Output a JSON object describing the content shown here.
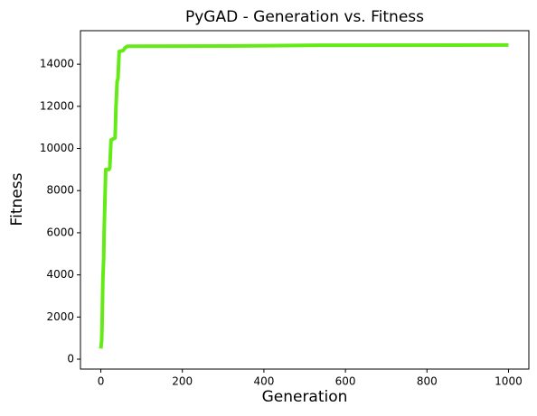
{
  "chart_data": {
    "type": "line",
    "title": "PyGAD - Generation vs. Fitness",
    "x_label": "Generation",
    "y_label": "Fitness",
    "x": [
      0,
      2,
      3,
      5,
      7,
      8,
      10,
      12,
      20,
      22,
      25,
      35,
      37,
      40,
      42,
      45,
      55,
      58,
      65,
      300,
      540,
      1000
    ],
    "series": [
      {
        "name": "Fitness",
        "color": "#64eb17",
        "values": [
          500,
          900,
          1600,
          3800,
          4800,
          6000,
          7500,
          9000,
          9000,
          9100,
          10400,
          10500,
          11900,
          13200,
          13300,
          14600,
          14650,
          14750,
          14850,
          14860,
          14900,
          14910
        ]
      }
    ],
    "xlim": [
      -50,
      1050
    ],
    "xticks": [
      0,
      200,
      400,
      600,
      800,
      1000
    ],
    "ylim": [
      -470,
      15590
    ],
    "yticks": [
      0,
      2000,
      4000,
      6000,
      8000,
      10000,
      12000,
      14000
    ]
  }
}
